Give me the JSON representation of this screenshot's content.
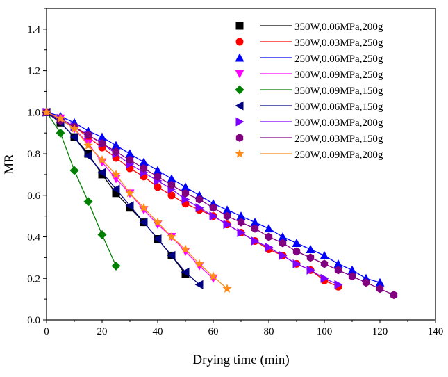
{
  "chart_data": {
    "type": "scatter",
    "xlabel": "Drying time (min)",
    "ylabel": "MR",
    "xlim": [
      0,
      140
    ],
    "ylim": [
      0.0,
      1.5
    ],
    "xticks": [
      "0",
      "20",
      "40",
      "60",
      "80",
      "100",
      "120",
      "140"
    ],
    "yticks": [
      "0.0",
      "0.2",
      "0.4",
      "0.6",
      "0.8",
      "1.0",
      "1.2",
      "1.4"
    ],
    "grid": false,
    "legend_position": "top-right",
    "series": [
      {
        "name": "350W,0.06MPa,200g",
        "color": "#000000",
        "marker": "square",
        "x": [
          0,
          5,
          10,
          15,
          20,
          25,
          30,
          35,
          40,
          45,
          50
        ],
        "y": [
          1.0,
          0.95,
          0.88,
          0.8,
          0.7,
          0.61,
          0.54,
          0.47,
          0.39,
          0.31,
          0.22
        ]
      },
      {
        "name": "350W,0.03MPa,250g",
        "color": "#ff0000",
        "marker": "circle",
        "x": [
          0,
          5,
          10,
          15,
          20,
          25,
          30,
          35,
          40,
          45,
          50,
          55,
          60,
          65,
          70,
          75,
          80,
          85,
          90,
          95,
          100,
          105
        ],
        "y": [
          1.0,
          0.97,
          0.93,
          0.88,
          0.83,
          0.78,
          0.73,
          0.69,
          0.64,
          0.6,
          0.56,
          0.53,
          0.5,
          0.46,
          0.42,
          0.38,
          0.34,
          0.31,
          0.27,
          0.24,
          0.19,
          0.16
        ]
      },
      {
        "name": "250W,0.06MPa,250g",
        "color": "#0000ff",
        "marker": "triangle-up",
        "x": [
          0,
          5,
          10,
          15,
          20,
          25,
          30,
          35,
          40,
          45,
          50,
          55,
          60,
          65,
          70,
          75,
          80,
          85,
          90,
          95,
          100,
          105,
          110,
          115,
          120
        ],
        "y": [
          1.0,
          0.98,
          0.95,
          0.91,
          0.88,
          0.84,
          0.8,
          0.76,
          0.72,
          0.68,
          0.64,
          0.6,
          0.56,
          0.53,
          0.5,
          0.47,
          0.44,
          0.4,
          0.37,
          0.34,
          0.31,
          0.27,
          0.24,
          0.2,
          0.18
        ]
      },
      {
        "name": "300W,0.09MPa,250g",
        "color": "#ff00ff",
        "marker": "triangle-down",
        "x": [
          0,
          5,
          10,
          15,
          20,
          25,
          30,
          35,
          40,
          45,
          50,
          55,
          60
        ],
        "y": [
          1.0,
          0.97,
          0.92,
          0.85,
          0.76,
          0.68,
          0.61,
          0.53,
          0.46,
          0.4,
          0.33,
          0.26,
          0.2
        ]
      },
      {
        "name": "350W,0.09MPa,150g",
        "color": "#008000",
        "marker": "diamond",
        "x": [
          0,
          5,
          10,
          15,
          20,
          25
        ],
        "y": [
          1.0,
          0.9,
          0.72,
          0.57,
          0.41,
          0.26
        ]
      },
      {
        "name": "300W,0.06MPa,150g",
        "color": "#000080",
        "marker": "triangle-left",
        "x": [
          0,
          5,
          10,
          15,
          20,
          25,
          30,
          35,
          40,
          45,
          50,
          55
        ],
        "y": [
          1.0,
          0.95,
          0.88,
          0.79,
          0.71,
          0.63,
          0.55,
          0.47,
          0.39,
          0.31,
          0.23,
          0.17
        ]
      },
      {
        "name": "300W,0.03MPa,200g",
        "color": "#8000ff",
        "marker": "triangle-right",
        "x": [
          0,
          5,
          10,
          15,
          20,
          25,
          30,
          35,
          40,
          45,
          50,
          55,
          60,
          65,
          70,
          75,
          80,
          85,
          90,
          95,
          100,
          105
        ],
        "y": [
          1.0,
          0.97,
          0.93,
          0.89,
          0.85,
          0.8,
          0.75,
          0.71,
          0.67,
          0.63,
          0.58,
          0.54,
          0.5,
          0.46,
          0.42,
          0.38,
          0.35,
          0.31,
          0.27,
          0.24,
          0.2,
          0.17
        ]
      },
      {
        "name": "250W,0.03MPa,150g",
        "color": "#800080",
        "marker": "hexagon",
        "x": [
          0,
          5,
          10,
          15,
          20,
          25,
          30,
          35,
          40,
          45,
          50,
          55,
          60,
          65,
          70,
          75,
          80,
          85,
          90,
          95,
          100,
          105,
          110,
          115,
          120,
          125
        ],
        "y": [
          1.0,
          0.96,
          0.93,
          0.89,
          0.85,
          0.81,
          0.77,
          0.73,
          0.69,
          0.65,
          0.61,
          0.58,
          0.54,
          0.5,
          0.47,
          0.44,
          0.4,
          0.37,
          0.33,
          0.3,
          0.27,
          0.24,
          0.21,
          0.18,
          0.15,
          0.12
        ]
      },
      {
        "name": "250W,0.09MPa,200g",
        "color": "#ff8c1a",
        "marker": "star",
        "x": [
          0,
          5,
          10,
          15,
          20,
          25,
          30,
          35,
          40,
          45,
          50,
          55,
          60,
          65
        ],
        "y": [
          1.0,
          0.97,
          0.92,
          0.84,
          0.77,
          0.7,
          0.61,
          0.54,
          0.47,
          0.4,
          0.34,
          0.27,
          0.21,
          0.15
        ]
      }
    ]
  }
}
